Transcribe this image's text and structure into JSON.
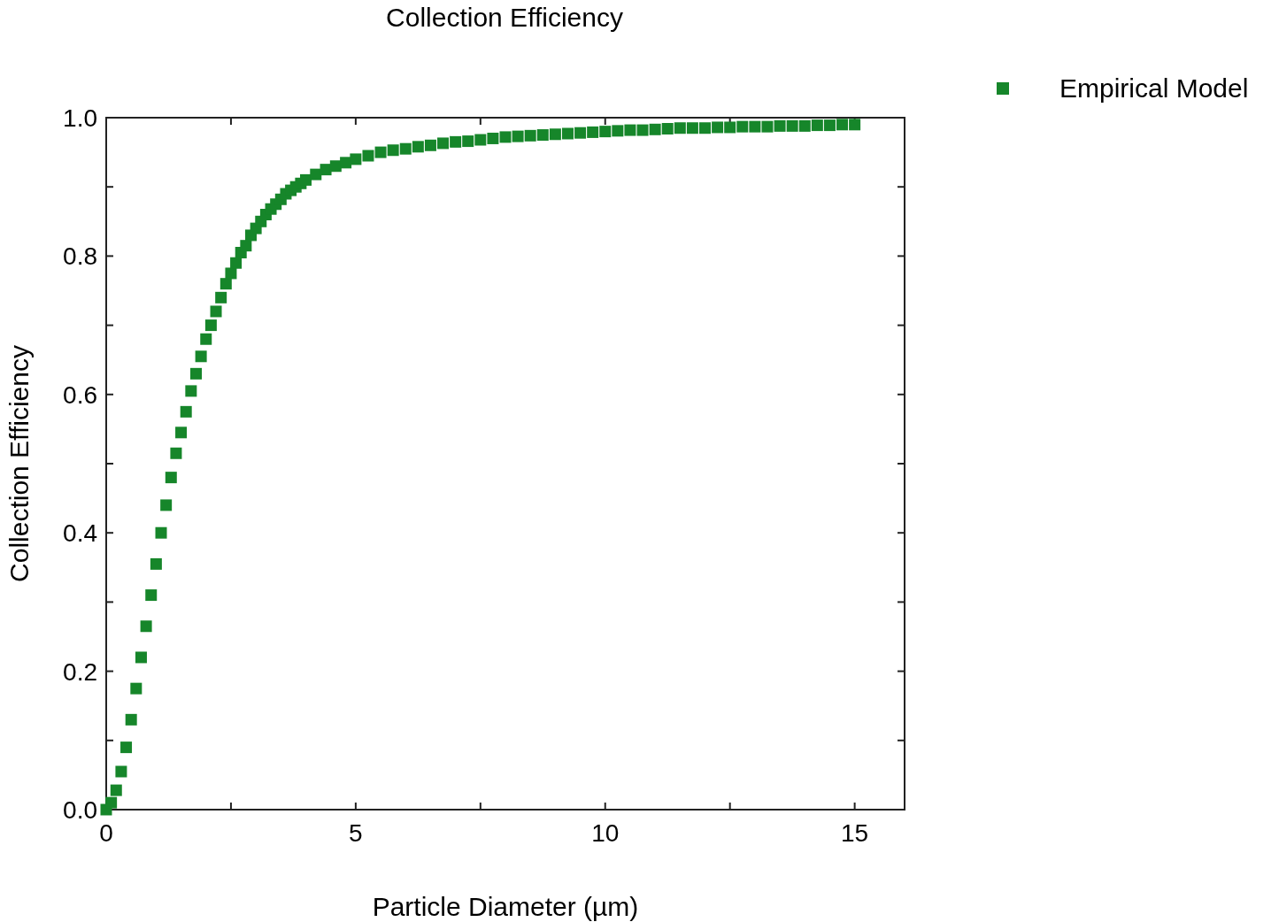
{
  "chart_data": {
    "type": "scatter",
    "title": "Collection Efficiency",
    "xlabel": "Particle Diameter (µm)",
    "ylabel": "Collection Efficiency",
    "xlim": [
      0,
      16
    ],
    "ylim": [
      0,
      1
    ],
    "xticks": [
      0,
      {
        "value": 2.5,
        "label": null
      },
      5,
      {
        "value": 7.5,
        "label": null
      },
      10,
      {
        "value": 12.5,
        "label": null
      },
      15
    ],
    "yticks": [
      {
        "value": 0,
        "label": "0.0"
      },
      {
        "value": 0.1,
        "label": null
      },
      {
        "value": 0.2,
        "label": "0.2"
      },
      {
        "value": 0.3,
        "label": null
      },
      {
        "value": 0.4,
        "label": "0.4"
      },
      {
        "value": 0.5,
        "label": null
      },
      {
        "value": 0.6,
        "label": "0.6"
      },
      {
        "value": 0.7,
        "label": null
      },
      {
        "value": 0.8,
        "label": "0.8"
      },
      {
        "value": 0.9,
        "label": null
      },
      {
        "value": 1.0,
        "label": "1.0"
      }
    ],
    "grid": false,
    "legend": "top right",
    "marker": "square",
    "series": [
      {
        "name": "Empirical Model",
        "color": "#16862a",
        "x": [
          0,
          0.1,
          0.2,
          0.3,
          0.4,
          0.5,
          0.6,
          0.7,
          0.8,
          0.9,
          1.0,
          1.1,
          1.2,
          1.3,
          1.4,
          1.5,
          1.6,
          1.7,
          1.8,
          1.9,
          2.0,
          2.1,
          2.2,
          2.3,
          2.4,
          2.5,
          2.6,
          2.7,
          2.8,
          2.9,
          3.0,
          3.1,
          3.2,
          3.3,
          3.4,
          3.5,
          3.6,
          3.7,
          3.8,
          3.9,
          4.0,
          4.2,
          4.4,
          4.6,
          4.8,
          5.0,
          5.25,
          5.5,
          5.75,
          6.0,
          6.25,
          6.5,
          6.75,
          7.0,
          7.25,
          7.5,
          7.75,
          8.0,
          8.25,
          8.5,
          8.75,
          9.0,
          9.25,
          9.5,
          9.75,
          10.0,
          10.25,
          10.5,
          10.75,
          11.0,
          11.25,
          11.5,
          11.75,
          12.0,
          12.25,
          12.5,
          12.75,
          13.0,
          13.25,
          13.5,
          13.75,
          14.0,
          14.25,
          14.5,
          14.75,
          15.0
        ],
        "values": [
          0,
          0.01,
          0.028,
          0.055,
          0.09,
          0.13,
          0.175,
          0.22,
          0.265,
          0.31,
          0.355,
          0.4,
          0.44,
          0.48,
          0.515,
          0.545,
          0.575,
          0.605,
          0.63,
          0.655,
          0.68,
          0.7,
          0.72,
          0.74,
          0.76,
          0.775,
          0.79,
          0.805,
          0.815,
          0.83,
          0.84,
          0.85,
          0.86,
          0.868,
          0.875,
          0.882,
          0.89,
          0.895,
          0.9,
          0.905,
          0.91,
          0.918,
          0.925,
          0.93,
          0.935,
          0.94,
          0.945,
          0.95,
          0.953,
          0.955,
          0.958,
          0.96,
          0.963,
          0.965,
          0.966,
          0.968,
          0.97,
          0.972,
          0.973,
          0.974,
          0.975,
          0.976,
          0.977,
          0.978,
          0.979,
          0.98,
          0.981,
          0.982,
          0.982,
          0.983,
          0.984,
          0.985,
          0.985,
          0.985,
          0.986,
          0.986,
          0.987,
          0.987,
          0.987,
          0.988,
          0.988,
          0.988,
          0.989,
          0.989,
          0.99,
          0.99
        ]
      }
    ]
  }
}
